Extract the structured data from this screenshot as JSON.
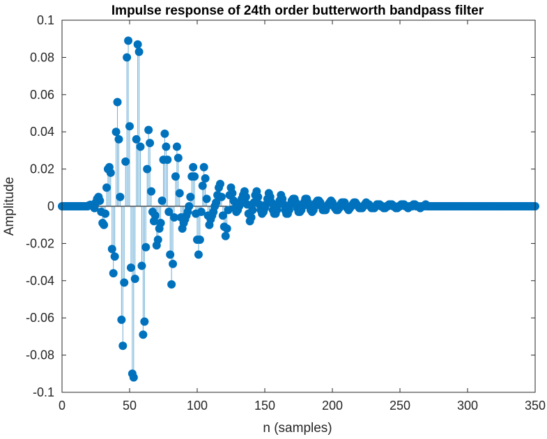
{
  "chart_data": {
    "type": "stem",
    "title": "Impulse response of 24th order butterworth bandpass filter",
    "xlabel": "n (samples)",
    "ylabel": "Amplitude",
    "xlim": [
      0,
      350
    ],
    "ylim": [
      -0.1,
      0.1
    ],
    "xticks": [
      "0",
      "50",
      "100",
      "150",
      "200",
      "250",
      "300",
      "350"
    ],
    "yticks": [
      "-0.1",
      "-0.08",
      "-0.06",
      "-0.04",
      "-0.02",
      "0",
      "0.02",
      "0.04",
      "0.06",
      "0.08",
      "0.1"
    ],
    "grid": false,
    "stem_color": "#6baed6",
    "marker_color": "#0072bd",
    "series": [
      {
        "x_start": 0,
        "x_step": 1,
        "values": [
          0,
          0,
          0,
          0,
          0,
          0,
          0,
          0,
          0,
          0,
          0,
          0,
          0,
          0,
          0,
          0,
          0,
          0,
          0,
          0,
          0.0005,
          0.0008,
          0.0005,
          0,
          -0.001,
          0.002,
          0.004,
          0.005,
          0.003,
          -0.003,
          -0.009,
          -0.01,
          -0.004,
          0.01,
          0.02,
          0.021,
          0.018,
          -0.023,
          -0.036,
          -0.027,
          0.04,
          0.056,
          0.036,
          0.005,
          -0.061,
          -0.075,
          -0.041,
          0.024,
          0.08,
          0.089,
          0.043,
          -0.033,
          -0.09,
          -0.092,
          -0.039,
          0.036,
          0.087,
          0.083,
          0.032,
          -0.032,
          -0.069,
          -0.062,
          -0.022,
          0.02,
          0.041,
          0.034,
          0.008,
          -0.003,
          -0.008,
          -0.005,
          -0.021,
          -0.018,
          -0.012,
          -0.009,
          0.003,
          0.025,
          0.039,
          0.032,
          0.025,
          -0.003,
          -0.026,
          -0.042,
          -0.031,
          -0.006,
          0.016,
          0.032,
          0.026,
          0.007,
          -0.006,
          -0.012,
          -0.009,
          -0.007,
          -0.005,
          -0.003,
          0.0,
          0.005,
          0.016,
          0.021,
          0.016,
          -0.004,
          -0.018,
          -0.026,
          -0.018,
          -0.003,
          0.011,
          0.021,
          0.015,
          0.004,
          -0.005,
          -0.01,
          -0.007,
          -0.005,
          -0.003,
          0.0,
          0.002,
          0.006,
          0.01,
          0.012,
          0.005,
          -0.005,
          -0.011,
          -0.016,
          -0.012,
          -0.002,
          0.006,
          0.01,
          0.007,
          0.003,
          -0.001,
          -0.003,
          -0.002,
          0.0,
          0.002,
          0.004,
          0.006,
          0.008,
          0.005,
          0.001,
          -0.004,
          -0.008,
          -0.006,
          -0.002,
          0.002,
          0.006,
          0.008,
          0.005,
          0.001,
          -0.002,
          -0.004,
          -0.003,
          -0.001,
          0.001,
          0.004,
          0.007,
          0.005,
          0.002,
          -0.002,
          -0.004,
          -0.004,
          -0.002,
          0.001,
          0.003,
          0.006,
          0.004,
          0.001,
          -0.002,
          -0.004,
          -0.004,
          -0.002,
          0.001,
          0.003,
          0.004,
          0.004,
          0.002,
          -0.001,
          -0.003,
          -0.003,
          -0.002,
          0.0,
          0.002,
          0.004,
          0.004,
          0.002,
          0.0,
          -0.002,
          -0.003,
          -0.002,
          0.0,
          0.002,
          0.003,
          0.003,
          0.002,
          0.0,
          -0.002,
          -0.002,
          -0.002,
          0.0,
          0.001,
          0.002,
          0.003,
          0.002,
          0.0,
          -0.001,
          -0.002,
          -0.002,
          -0.001,
          0.001,
          0.002,
          0.002,
          0.002,
          0.0,
          -0.001,
          -0.002,
          -0.001,
          0.0,
          0.001,
          0.002,
          0.002,
          0.001,
          0.0,
          -0.001,
          -0.001,
          -0.001,
          0.0,
          0.001,
          0.002,
          0.001,
          0.001,
          0.0,
          -0.001,
          -0.001,
          -0.001,
          0.0,
          0.001,
          0.001,
          0.001,
          0.0,
          0.0,
          -0.001,
          -0.001,
          0.0,
          0.0,
          0.001,
          0.001,
          0.001,
          0.0,
          0.0,
          -0.001,
          -0.001,
          0.0,
          0.0,
          0.001,
          0.001,
          0.001,
          0.0,
          0.0,
          -0.001,
          0.0,
          0.0,
          0.0,
          0.001,
          0.001,
          0.0,
          0.0,
          0.0,
          -0.001,
          0.0,
          0.0,
          0.0,
          0.001,
          0.0,
          0.0,
          0.0,
          0.0,
          0.0,
          0.0,
          0.0,
          0.0,
          0.0,
          0.0,
          0.0,
          0.0,
          0.0,
          0.0,
          0.0,
          0.0,
          0.0,
          0.0,
          0.0,
          0.0,
          0.0,
          0.0,
          0.0,
          0.0,
          0.0,
          0.0,
          0.0,
          0.0,
          0.0,
          0.0,
          0.0,
          0.0,
          0.0,
          0.0,
          0.0,
          0.0,
          0.0,
          0.0,
          0.0,
          0.0,
          0.0,
          0.0,
          0.0,
          0.0,
          0.0,
          0.0,
          0.0,
          0.0,
          0.0,
          0.0,
          0.0,
          0.0,
          0.0,
          0.0,
          0.0,
          0.0,
          0.0,
          0.0,
          0.0,
          0.0,
          0.0,
          0.0,
          0.0,
          0.0,
          0.0,
          0.0,
          0.0,
          0.0,
          0.0,
          0.0,
          0.0,
          0.0,
          0.0,
          0.0,
          0.0,
          0.0,
          0.0,
          0.0,
          0.0,
          0.0,
          0.0,
          0.0,
          0.0,
          0.0,
          0.0,
          0.0,
          0.0,
          0.0,
          0.0,
          0.0,
          0.0,
          0.0,
          0.0,
          0.0,
          0.0,
          0.0,
          0.0
        ]
      }
    ]
  }
}
